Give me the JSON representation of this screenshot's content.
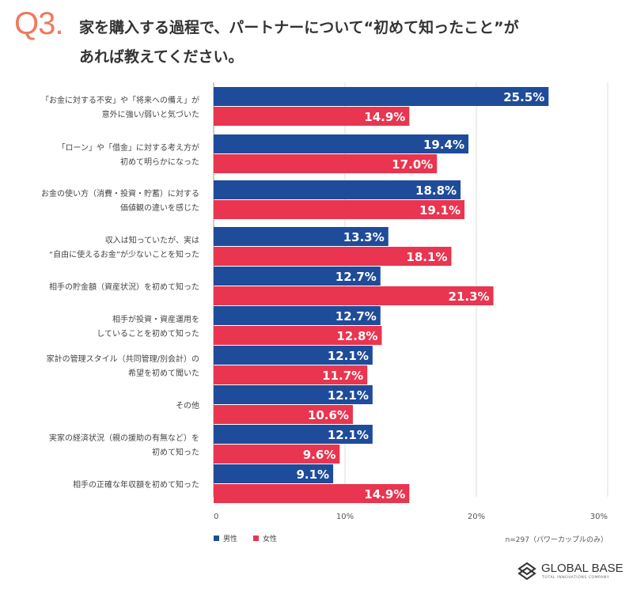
{
  "header": {
    "question_number": "Q3.",
    "title_line1": "家を購入する過程で、パートナーについて“初めて知ったこと”が",
    "title_line2": "あれば教えてください。"
  },
  "chart_data": {
    "type": "bar",
    "orientation": "horizontal",
    "categories": [
      [
        "「お金に対する不安」や「将来への備え」が",
        "意外に強い/弱いと気づいた"
      ],
      [
        "「ローン」や「借金」に対する考え方が",
        "初めて明らかになった"
      ],
      [
        "お金の使い方（消費・投資・貯蓄）に対する",
        "価値観の違いを感じた"
      ],
      [
        "収入は知っていたが、実は",
        "“自由に使えるお金”が少ないことを知った"
      ],
      [
        "相手の貯金額（資産状況）を初めて知った"
      ],
      [
        "相手が投資・資産運用を",
        "していることを初めて知った"
      ],
      [
        "家計の管理スタイル（共同管理/別会計）の",
        "希望を初めて聞いた"
      ],
      [
        "その他"
      ],
      [
        "実家の経済状況（親の援助の有無など）を",
        "初めて知った"
      ],
      [
        "相手の正確な年収額を初めて知った"
      ]
    ],
    "series": [
      {
        "name": "男性",
        "color": "#1f4c9a",
        "values": [
          25.5,
          19.4,
          18.8,
          13.3,
          12.7,
          12.7,
          12.1,
          12.1,
          12.1,
          9.1
        ]
      },
      {
        "name": "女性",
        "color": "#e9354f",
        "values": [
          14.9,
          17.0,
          19.1,
          18.1,
          21.3,
          12.8,
          11.7,
          10.6,
          9.6,
          14.9
        ]
      }
    ],
    "xlim": [
      0,
      30
    ],
    "xticks": [
      "0",
      "10%",
      "20%",
      "30%"
    ],
    "xtick_values": [
      0,
      10,
      20,
      30
    ],
    "value_suffix": "%",
    "grid": true,
    "legend_position": "bottom-left",
    "note": "n=297（パワーカップルのみ）"
  },
  "footer": {
    "logo_name": "GLOBAL BASE",
    "logo_tagline": "TOTAL INNOVATIONS COMPANY"
  }
}
